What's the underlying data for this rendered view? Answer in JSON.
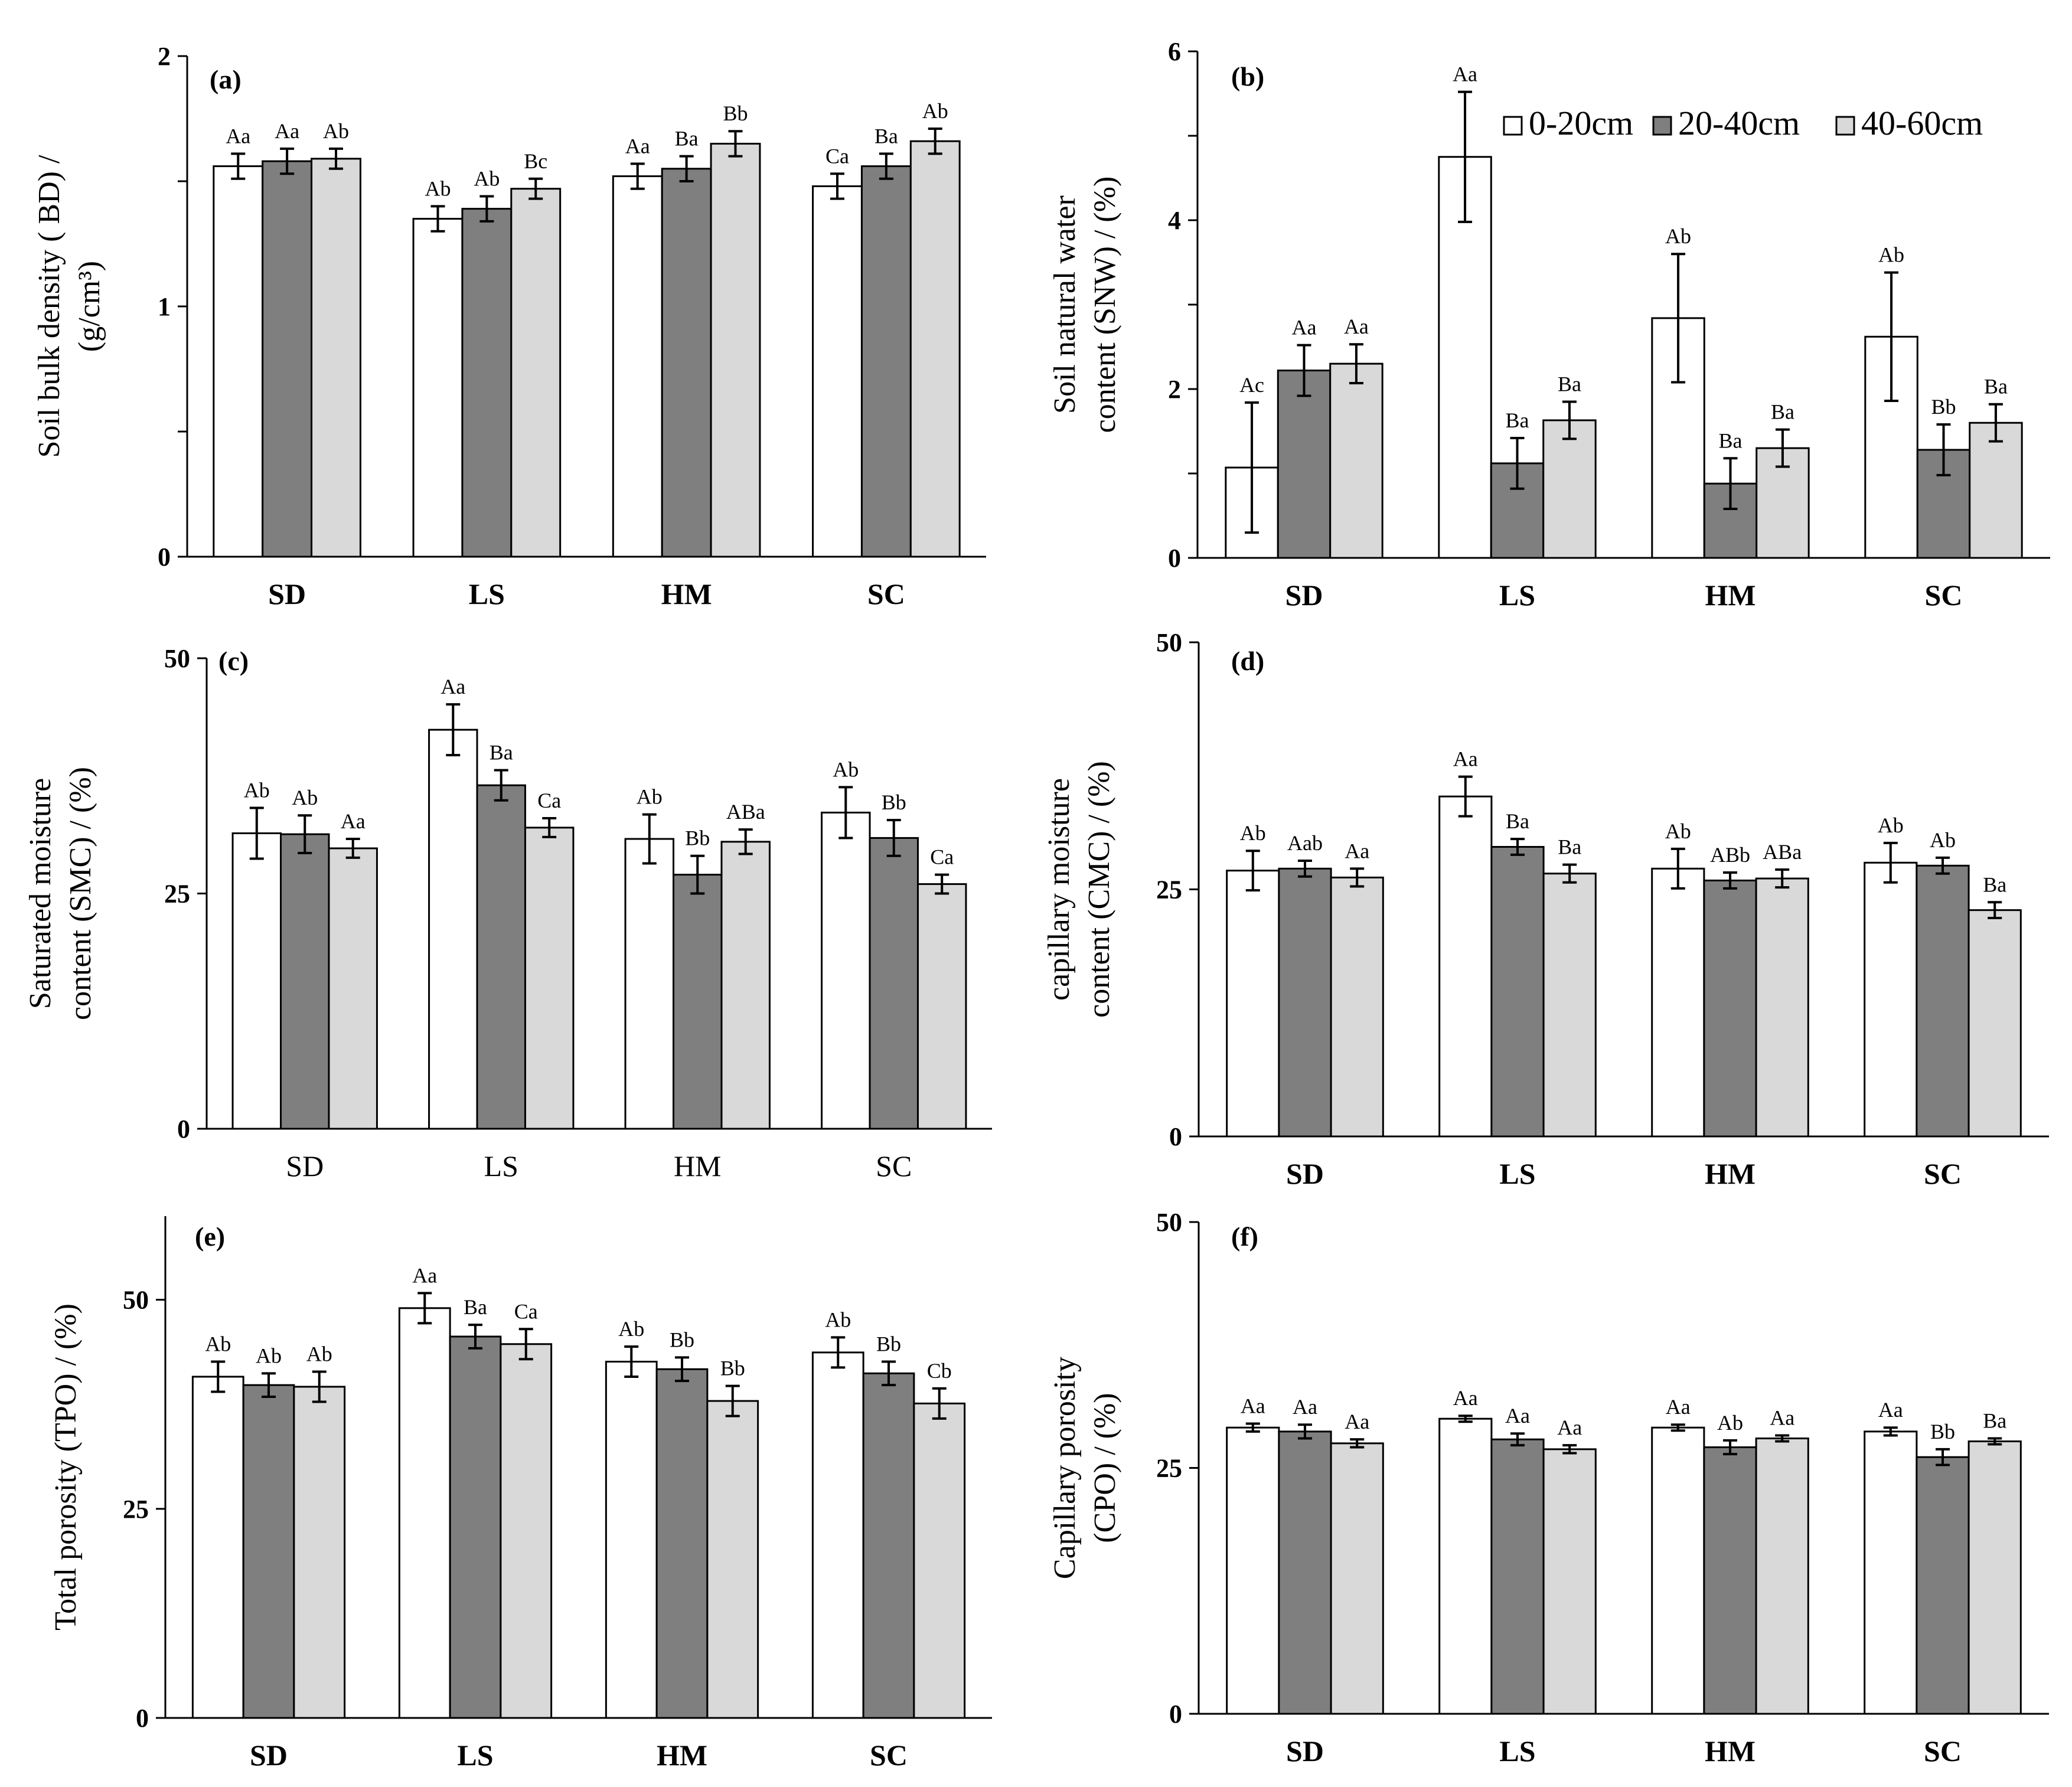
{
  "chart_data": [
    {
      "panel": "(a)",
      "type": "bar",
      "categories": [
        "SD",
        "LS",
        "HM",
        "SC"
      ],
      "ylabel": [
        "Soil bulk density ( BD) /",
        "(g/cm³)"
      ],
      "ylim": [
        0,
        2
      ],
      "yticks": [
        "0",
        "1",
        "2"
      ],
      "series": [
        {
          "name": "0-20cm",
          "values": [
            1.56,
            1.35,
            1.52,
            1.48
          ],
          "errors": [
            0.05,
            0.05,
            0.05,
            0.05
          ],
          "letters": [
            "Aa",
            "Ab",
            "Aa",
            "Ca"
          ]
        },
        {
          "name": "20-40cm",
          "values": [
            1.58,
            1.39,
            1.55,
            1.56
          ],
          "errors": [
            0.05,
            0.05,
            0.05,
            0.05
          ],
          "letters": [
            "Aa",
            "Ab",
            "Ba",
            "Ba"
          ]
        },
        {
          "name": "40-60cm",
          "values": [
            1.59,
            1.47,
            1.65,
            1.66
          ],
          "errors": [
            0.04,
            0.04,
            0.05,
            0.05
          ],
          "letters": [
            "Ab",
            "Bc",
            "Bb",
            "Ab"
          ]
        }
      ]
    },
    {
      "panel": "(b)",
      "type": "bar",
      "categories": [
        "SD",
        "LS",
        "HM",
        "SC"
      ],
      "ylabel": [
        "Soil natural water",
        "content (SNW) / (%)"
      ],
      "ylim": [
        0,
        6
      ],
      "yticks": [
        "0",
        "2",
        "4",
        "6"
      ],
      "series": [
        {
          "name": "0-20cm",
          "values": [
            1.07,
            4.75,
            2.84,
            2.62
          ],
          "errors": [
            0.77,
            0.77,
            0.76,
            0.76
          ],
          "letters": [
            "Ac",
            "Aa",
            "Ab",
            "Ab"
          ]
        },
        {
          "name": "20-40cm",
          "values": [
            2.22,
            1.12,
            0.88,
            1.28
          ],
          "errors": [
            0.3,
            0.3,
            0.3,
            0.3
          ],
          "letters": [
            "Aa",
            "Ba",
            "Ba",
            "Bb"
          ]
        },
        {
          "name": "40-60cm",
          "values": [
            2.3,
            1.63,
            1.3,
            1.6
          ],
          "errors": [
            0.23,
            0.22,
            0.22,
            0.22
          ],
          "letters": [
            "Aa",
            "Ba",
            "Ba",
            "Ba"
          ]
        }
      ]
    },
    {
      "panel": "(c)",
      "type": "bar",
      "categories": [
        "SD",
        "LS",
        "HM",
        "SC"
      ],
      "ylabel": [
        "Saturated moisture",
        "content (SMC) / (%)"
      ],
      "ylim": [
        0,
        50
      ],
      "yticks": [
        "0",
        "25",
        "50"
      ],
      "series": [
        {
          "name": "0-20cm",
          "values": [
            31.4,
            42.4,
            30.8,
            33.6
          ],
          "errors": [
            2.7,
            2.7,
            2.6,
            2.7
          ],
          "letters": [
            "Ab",
            "Aa",
            "Ab",
            "Ab"
          ]
        },
        {
          "name": "20-40cm",
          "values": [
            31.3,
            36.5,
            27.0,
            30.9
          ],
          "errors": [
            2.0,
            1.6,
            2.0,
            1.9
          ],
          "letters": [
            "Ab",
            "Ba",
            "Bb",
            "Bb"
          ]
        },
        {
          "name": "40-60cm",
          "values": [
            29.8,
            32.0,
            30.5,
            26.0
          ],
          "errors": [
            1.0,
            1.0,
            1.3,
            1.0
          ],
          "letters": [
            "Aa",
            "Ca",
            "ABa",
            "Ca"
          ]
        }
      ]
    },
    {
      "panel": "(d)",
      "type": "bar",
      "categories": [
        "SD",
        "LS",
        "HM",
        "SC"
      ],
      "ylabel": [
        "capillary  moisture",
        "content (CMC) / (%)"
      ],
      "ylim": [
        0,
        50
      ],
      "yticks": [
        "0",
        "25",
        "50"
      ],
      "series": [
        {
          "name": "0-20cm",
          "values": [
            26.9,
            34.4,
            27.1,
            27.7
          ],
          "errors": [
            2.0,
            2.0,
            2.0,
            2.0
          ],
          "letters": [
            "Ab",
            "Aa",
            "Ab",
            "Ab"
          ]
        },
        {
          "name": "20-40cm",
          "values": [
            27.1,
            29.3,
            25.9,
            27.4
          ],
          "errors": [
            0.8,
            0.8,
            0.8,
            0.8
          ],
          "letters": [
            "Aab",
            "Ba",
            "ABb",
            "Ab"
          ]
        },
        {
          "name": "40-60cm",
          "values": [
            26.2,
            26.6,
            26.1,
            22.9
          ],
          "errors": [
            0.9,
            0.9,
            0.9,
            0.8
          ],
          "letters": [
            "Aa",
            "Ba",
            "ABa",
            "Ba"
          ]
        }
      ]
    },
    {
      "panel": "(e)",
      "type": "bar",
      "categories": [
        "SD",
        "LS",
        "HM",
        "SC"
      ],
      "ylabel": [
        "Total porosity (TPO) / (%)"
      ],
      "ylim": [
        0,
        60
      ],
      "yticks": [
        "0",
        "25",
        "50"
      ],
      "series": [
        {
          "name": "0-20cm",
          "values": [
            40.8,
            49.0,
            42.6,
            43.7
          ],
          "errors": [
            1.8,
            1.8,
            1.8,
            1.8
          ],
          "letters": [
            "Ab",
            "Aa",
            "Ab",
            "Ab"
          ]
        },
        {
          "name": "20-40cm",
          "values": [
            39.8,
            45.6,
            41.7,
            41.2
          ],
          "errors": [
            1.4,
            1.4,
            1.4,
            1.4
          ],
          "letters": [
            "Ab",
            "Ba",
            "Bb",
            "Bb"
          ]
        },
        {
          "name": "40-60cm",
          "values": [
            39.6,
            44.7,
            37.9,
            37.6
          ],
          "errors": [
            1.8,
            1.8,
            1.8,
            1.8
          ],
          "letters": [
            "Ab",
            "Ca",
            "Bb",
            "Cb"
          ]
        }
      ]
    },
    {
      "panel": "(f)",
      "type": "bar",
      "categories": [
        "SD",
        "LS",
        "HM",
        "SC"
      ],
      "ylabel": [
        "Capillary porosity",
        "(CPO) / (%)"
      ],
      "ylim": [
        0,
        50
      ],
      "yticks": [
        "0",
        "25",
        "50"
      ],
      "series": [
        {
          "name": "0-20cm",
          "values": [
            29.1,
            30.0,
            29.1,
            28.7
          ],
          "errors": [
            0.4,
            0.3,
            0.3,
            0.4
          ],
          "letters": [
            "Aa",
            "Aa",
            "Aa",
            "Aa"
          ]
        },
        {
          "name": "20-40cm",
          "values": [
            28.7,
            27.9,
            27.1,
            26.1
          ],
          "errors": [
            0.7,
            0.6,
            0.7,
            0.8
          ],
          "letters": [
            "Aa",
            "Aa",
            "Ab",
            "Bb"
          ]
        },
        {
          "name": "40-60cm",
          "values": [
            27.5,
            26.9,
            28.0,
            27.7
          ],
          "errors": [
            0.4,
            0.4,
            0.3,
            0.3
          ],
          "letters": [
            "Aa",
            "Aa",
            "Aa",
            "Ba"
          ]
        }
      ]
    }
  ],
  "legend": {
    "items": [
      "0-20cm",
      "20-40cm",
      "40-60cm"
    ],
    "colors": [
      "#ffffff",
      "#7f7f7f",
      "#d9d9d9"
    ]
  },
  "colors": {
    "axis": "#000000",
    "bar_border": "#000000"
  }
}
